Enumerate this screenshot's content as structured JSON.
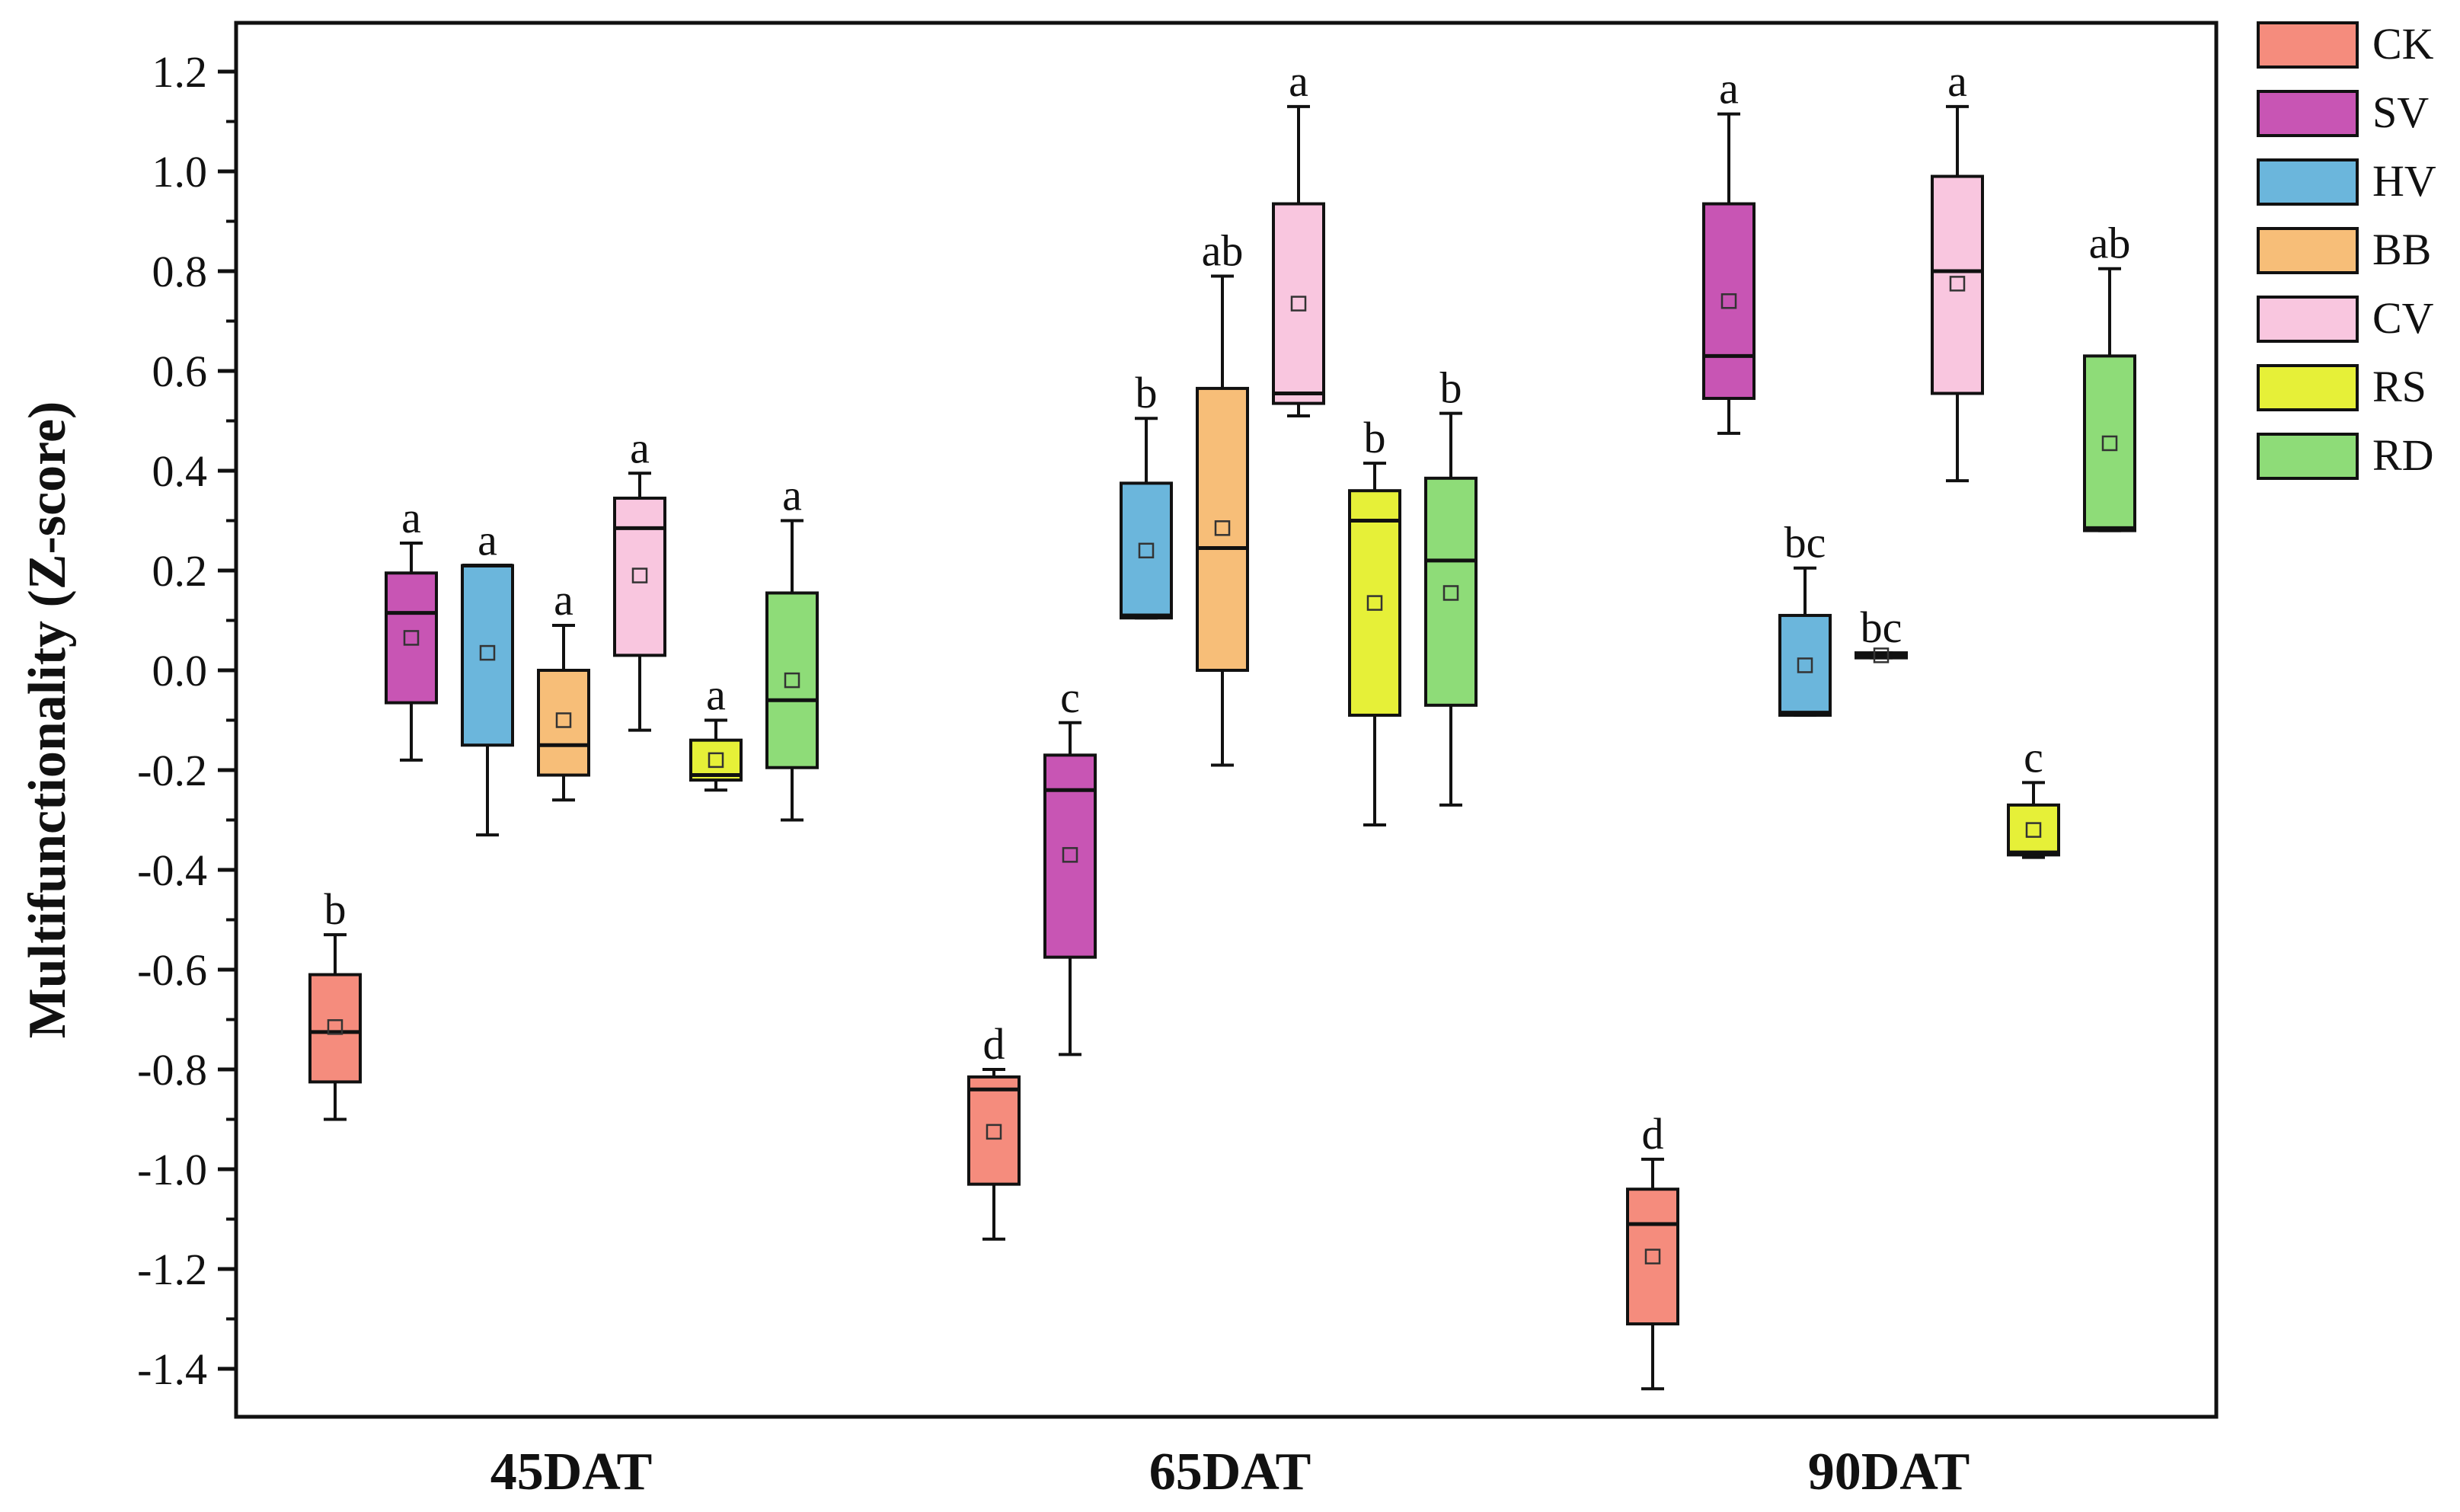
{
  "chart_data": {
    "type": "box",
    "title": "",
    "xlabel": "",
    "ylabel": "Multifunctionality (Z-score)",
    "ylim": [
      -1.5,
      1.3
    ],
    "y_ticks": [
      -1.4,
      -1.2,
      -1.0,
      -0.8,
      -0.6,
      -0.4,
      -0.2,
      0.0,
      0.2,
      0.4,
      0.6,
      0.8,
      1.0,
      1.2
    ],
    "y_tick_labels": [
      "-1.4",
      "-1.2",
      "-1.0",
      "-0.8",
      "-0.6",
      "-0.4",
      "-0.2",
      "0.0",
      "0.2",
      "0.4",
      "0.6",
      "0.8",
      "1.0",
      "1.2"
    ],
    "groups": [
      "45DAT",
      "65DAT",
      "90DAT"
    ],
    "legend_position": "outside-top-right",
    "series": [
      {
        "name": "CK",
        "color": "#F58C7D"
      },
      {
        "name": "SV",
        "color": "#C855B4"
      },
      {
        "name": "HV",
        "color": "#6BB6DC"
      },
      {
        "name": "BB",
        "color": "#F7BE78"
      },
      {
        "name": "CV",
        "color": "#F9C6DF"
      },
      {
        "name": "RS",
        "color": "#E6F038"
      },
      {
        "name": "RD",
        "color": "#8EDC78"
      }
    ],
    "boxes": [
      {
        "group": "45DAT",
        "series": "CK",
        "whisker_low": -0.9,
        "q1": -0.825,
        "median": -0.725,
        "q3": -0.61,
        "whisker_high": -0.53,
        "mean": -0.715,
        "letter": "b"
      },
      {
        "group": "45DAT",
        "series": "SV",
        "whisker_low": -0.18,
        "q1": -0.065,
        "median": 0.115,
        "q3": 0.195,
        "whisker_high": 0.255,
        "mean": 0.065,
        "letter": "a"
      },
      {
        "group": "45DAT",
        "series": "HV",
        "whisker_low": -0.33,
        "q1": -0.15,
        "median": 0.21,
        "q3": 0.21,
        "whisker_high": 0.21,
        "mean": 0.035,
        "letter": "a"
      },
      {
        "group": "45DAT",
        "series": "BB",
        "whisker_low": -0.26,
        "q1": -0.21,
        "median": -0.15,
        "q3": 0.0,
        "whisker_high": 0.09,
        "mean": -0.1,
        "letter": "a"
      },
      {
        "group": "45DAT",
        "series": "CV",
        "whisker_low": -0.12,
        "q1": 0.03,
        "median": 0.285,
        "q3": 0.345,
        "whisker_high": 0.395,
        "mean": 0.19,
        "letter": "a"
      },
      {
        "group": "45DAT",
        "series": "RS",
        "whisker_low": -0.24,
        "q1": -0.22,
        "median": -0.21,
        "q3": -0.14,
        "whisker_high": -0.1,
        "mean": -0.18,
        "letter": "a"
      },
      {
        "group": "45DAT",
        "series": "RD",
        "whisker_low": -0.3,
        "q1": -0.195,
        "median": -0.06,
        "q3": 0.155,
        "whisker_high": 0.3,
        "mean": -0.02,
        "letter": "a"
      },
      {
        "group": "65DAT",
        "series": "CK",
        "whisker_low": -1.14,
        "q1": -1.03,
        "median": -0.84,
        "q3": -0.815,
        "whisker_high": -0.8,
        "mean": -0.925,
        "letter": "d"
      },
      {
        "group": "65DAT",
        "series": "SV",
        "whisker_low": -0.77,
        "q1": -0.575,
        "median": -0.24,
        "q3": -0.17,
        "whisker_high": -0.105,
        "mean": -0.37,
        "letter": "c"
      },
      {
        "group": "65DAT",
        "series": "HV",
        "whisker_low": 0.105,
        "q1": 0.105,
        "median": 0.11,
        "q3": 0.375,
        "whisker_high": 0.505,
        "mean": 0.24,
        "letter": "b"
      },
      {
        "group": "65DAT",
        "series": "BB",
        "whisker_low": -0.19,
        "q1": 0.0,
        "median": 0.245,
        "q3": 0.565,
        "whisker_high": 0.79,
        "mean": 0.285,
        "letter": "ab"
      },
      {
        "group": "65DAT",
        "series": "CV",
        "whisker_low": 0.51,
        "q1": 0.535,
        "median": 0.555,
        "q3": 0.935,
        "whisker_high": 1.13,
        "mean": 0.735,
        "letter": "a"
      },
      {
        "group": "65DAT",
        "series": "RS",
        "whisker_low": -0.31,
        "q1": -0.09,
        "median": 0.3,
        "q3": 0.36,
        "whisker_high": 0.415,
        "mean": 0.135,
        "letter": "b"
      },
      {
        "group": "65DAT",
        "series": "RD",
        "whisker_low": -0.27,
        "q1": -0.07,
        "median": 0.22,
        "q3": 0.385,
        "whisker_high": 0.515,
        "mean": 0.155,
        "letter": "b"
      },
      {
        "group": "90DAT",
        "series": "CK",
        "whisker_low": -1.44,
        "q1": -1.31,
        "median": -1.11,
        "q3": -1.04,
        "whisker_high": -0.98,
        "mean": -1.175,
        "letter": "d"
      },
      {
        "group": "90DAT",
        "series": "SV",
        "whisker_low": 0.475,
        "q1": 0.545,
        "median": 0.63,
        "q3": 0.935,
        "whisker_high": 1.115,
        "mean": 0.74,
        "letter": "a"
      },
      {
        "group": "90DAT",
        "series": "HV",
        "whisker_low": -0.09,
        "q1": -0.09,
        "median": -0.085,
        "q3": 0.11,
        "whisker_high": 0.205,
        "mean": 0.01,
        "letter": "bc"
      },
      {
        "group": "90DAT",
        "series": "BB",
        "whisker_low": 0.025,
        "q1": 0.025,
        "median": 0.03,
        "q3": 0.035,
        "whisker_high": 0.035,
        "mean": 0.03,
        "letter": "bc"
      },
      {
        "group": "90DAT",
        "series": "CV",
        "whisker_low": 0.38,
        "q1": 0.555,
        "median": 0.8,
        "q3": 0.99,
        "whisker_high": 1.13,
        "mean": 0.775,
        "letter": "a"
      },
      {
        "group": "90DAT",
        "series": "RS",
        "whisker_low": -0.375,
        "q1": -0.37,
        "median": -0.365,
        "q3": -0.27,
        "whisker_high": -0.225,
        "mean": -0.32,
        "letter": "c"
      },
      {
        "group": "90DAT",
        "series": "RD",
        "whisker_low": 0.28,
        "q1": 0.28,
        "median": 0.285,
        "q3": 0.63,
        "whisker_high": 0.805,
        "mean": 0.455,
        "letter": "ab"
      }
    ]
  }
}
